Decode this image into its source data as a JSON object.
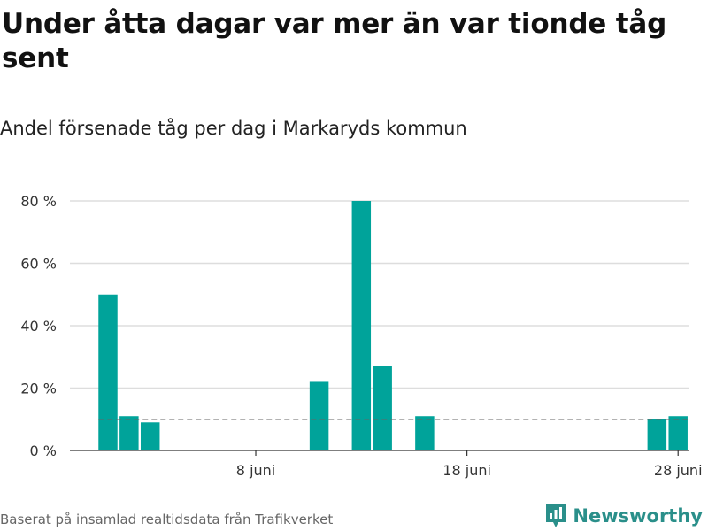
{
  "title": "Under åtta dagar var mer än var tionde tåg sent",
  "subtitle": "Andel försenade tåg per dag i Markaryds kommun",
  "footer": "Baserat på insamlad realtidsdata från Trafikverket",
  "brand": {
    "name": "Newsworthy",
    "icon": "newsworthy-logo-icon",
    "color": "#2a8f8a"
  },
  "chart_data": {
    "type": "bar",
    "x": [
      "2019-06-01",
      "2019-06-02",
      "2019-06-03",
      "2019-06-04",
      "2019-06-05",
      "2019-06-06",
      "2019-06-07",
      "2019-06-08",
      "2019-06-09",
      "2019-06-10",
      "2019-06-11",
      "2019-06-12",
      "2019-06-13",
      "2019-06-14",
      "2019-06-15",
      "2019-06-16",
      "2019-06-17",
      "2019-06-18",
      "2019-06-19",
      "2019-06-20",
      "2019-06-21",
      "2019-06-22",
      "2019-06-23",
      "2019-06-24",
      "2019-06-25",
      "2019-06-26",
      "2019-06-27",
      "2019-06-28",
      "2019-06-29"
    ],
    "values": [
      50,
      11,
      9,
      0,
      0,
      0,
      0,
      0,
      0,
      0,
      22,
      0,
      80,
      27,
      0,
      11,
      0,
      0,
      0,
      0,
      0,
      0,
      0,
      0,
      0,
      0,
      10,
      11,
      0
    ],
    "ylim": [
      0,
      80
    ],
    "yticks": [
      0,
      20,
      40,
      60,
      80
    ],
    "ytick_labels": [
      "0 %",
      "20 %",
      "40 %",
      "60 %",
      "80 %"
    ],
    "xticks": [
      "2019-06-08",
      "2019-06-18",
      "2019-06-28"
    ],
    "xtick_labels": [
      "8 juni",
      "18 juni",
      "28 juni"
    ],
    "threshold": 10,
    "grid": true,
    "bar_color": "#00a39a",
    "threshold_color": "#666666"
  }
}
